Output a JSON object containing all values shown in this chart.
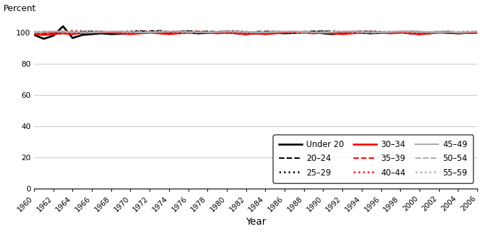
{
  "years": [
    1960,
    1961,
    1962,
    1963,
    1964,
    1965,
    1966,
    1967,
    1968,
    1969,
    1970,
    1971,
    1972,
    1973,
    1974,
    1975,
    1976,
    1977,
    1978,
    1979,
    1980,
    1981,
    1982,
    1983,
    1984,
    1985,
    1986,
    1987,
    1988,
    1989,
    1990,
    1991,
    1992,
    1993,
    1994,
    1995,
    1996,
    1997,
    1998,
    1999,
    2000,
    2001,
    2002,
    2003,
    2004,
    2005,
    2006
  ],
  "series": {
    "Under 20": [
      98.5,
      96.0,
      98.0,
      104.0,
      96.5,
      98.5,
      99.0,
      99.5,
      99.0,
      99.2,
      99.5,
      99.8,
      100.0,
      100.3,
      99.5,
      99.8,
      100.0,
      99.5,
      99.8,
      100.0,
      100.5,
      99.5,
      99.0,
      99.5,
      100.0,
      99.8,
      99.5,
      99.8,
      100.0,
      100.5,
      99.5,
      99.0,
      99.5,
      100.0,
      99.8,
      99.5,
      99.8,
      100.0,
      100.5,
      99.5,
      99.0,
      99.5,
      100.0,
      99.8,
      99.5,
      99.8,
      100.0
    ],
    "20-24": [
      99.5,
      99.0,
      100.0,
      100.5,
      100.0,
      100.5,
      100.8,
      100.5,
      100.2,
      100.0,
      100.5,
      100.8,
      101.0,
      101.2,
      100.5,
      100.8,
      101.0,
      100.5,
      100.8,
      100.5,
      101.0,
      100.5,
      100.0,
      100.5,
      100.8,
      100.5,
      100.2,
      100.0,
      100.5,
      100.8,
      101.0,
      100.5,
      100.0,
      100.5,
      100.8,
      100.5,
      100.2,
      100.0,
      100.5,
      100.8,
      100.5,
      100.0,
      100.5,
      100.8,
      99.8,
      100.0,
      100.5
    ],
    "25-29": [
      99.8,
      100.2,
      100.5,
      100.8,
      101.0,
      100.8,
      100.5,
      100.2,
      100.0,
      100.5,
      100.8,
      101.0,
      100.5,
      100.8,
      100.5,
      100.8,
      101.0,
      100.5,
      100.0,
      100.5,
      100.8,
      101.0,
      100.5,
      100.0,
      100.5,
      100.8,
      100.5,
      100.2,
      100.0,
      100.5,
      100.8,
      101.0,
      100.5,
      100.0,
      100.5,
      100.8,
      100.5,
      100.2,
      100.0,
      100.5,
      100.5,
      100.0,
      100.2,
      100.5,
      100.0,
      100.2,
      100.5
    ],
    "30-34": [
      99.0,
      98.5,
      99.0,
      99.5,
      99.0,
      99.8,
      100.0,
      100.5,
      100.0,
      99.5,
      99.0,
      99.5,
      100.0,
      99.5,
      99.0,
      99.5,
      100.0,
      100.5,
      100.0,
      99.5,
      100.0,
      99.5,
      99.0,
      99.5,
      99.0,
      99.5,
      100.0,
      100.5,
      100.0,
      99.5,
      100.0,
      99.5,
      99.0,
      99.5,
      100.0,
      100.5,
      100.0,
      99.5,
      100.0,
      99.5,
      99.0,
      99.5,
      100.0,
      100.5,
      99.5,
      99.8,
      100.0
    ],
    "35-39": [
      99.5,
      99.8,
      100.0,
      100.5,
      100.0,
      99.5,
      99.8,
      100.0,
      100.5,
      100.0,
      99.5,
      99.8,
      100.0,
      100.5,
      100.0,
      99.5,
      99.8,
      100.0,
      100.5,
      100.0,
      99.5,
      99.8,
      100.0,
      100.5,
      99.0,
      99.5,
      99.8,
      100.0,
      100.5,
      100.0,
      99.5,
      99.8,
      100.0,
      100.5,
      100.0,
      99.5,
      99.8,
      100.0,
      100.5,
      100.0,
      99.5,
      99.8,
      100.0,
      100.5,
      99.8,
      100.0,
      100.5
    ],
    "40-44": [
      99.8,
      100.0,
      100.2,
      100.5,
      100.8,
      100.5,
      100.2,
      100.0,
      99.8,
      100.0,
      100.2,
      100.5,
      100.8,
      100.5,
      100.2,
      100.0,
      99.8,
      100.0,
      100.2,
      100.5,
      100.0,
      99.8,
      100.0,
      100.2,
      100.5,
      100.8,
      100.5,
      100.2,
      100.0,
      99.8,
      100.0,
      100.2,
      100.5,
      100.8,
      100.5,
      100.2,
      100.0,
      99.8,
      100.0,
      100.2,
      100.5,
      100.0,
      100.2,
      100.5,
      100.0,
      100.2,
      100.5
    ],
    "45-49": [
      100.0,
      100.2,
      100.5,
      100.8,
      100.5,
      100.2,
      100.0,
      100.2,
      100.5,
      100.8,
      100.5,
      100.2,
      100.0,
      100.2,
      100.5,
      100.8,
      100.5,
      100.2,
      100.0,
      100.2,
      100.5,
      100.8,
      100.5,
      100.2,
      100.0,
      100.2,
      100.5,
      100.8,
      100.5,
      100.2,
      100.0,
      100.2,
      100.5,
      100.8,
      100.5,
      100.2,
      100.0,
      100.2,
      100.5,
      100.8,
      100.5,
      100.2,
      100.0,
      100.2,
      100.0,
      100.2,
      100.5
    ],
    "50-54": [
      100.2,
      100.5,
      100.8,
      100.5,
      100.2,
      100.0,
      100.2,
      100.5,
      100.8,
      100.5,
      100.2,
      100.0,
      100.2,
      100.5,
      100.8,
      100.5,
      100.2,
      100.0,
      100.2,
      100.5,
      100.8,
      100.5,
      100.2,
      100.0,
      100.2,
      100.5,
      100.8,
      100.5,
      100.2,
      100.0,
      100.2,
      100.5,
      100.8,
      100.5,
      100.2,
      100.0,
      100.2,
      100.5,
      100.8,
      100.5,
      100.2,
      100.5,
      100.8,
      100.5,
      100.2,
      100.5,
      100.8
    ],
    "55-59": [
      100.5,
      100.8,
      100.5,
      100.2,
      100.0,
      100.2,
      100.5,
      100.8,
      100.5,
      100.2,
      100.0,
      100.2,
      100.5,
      100.8,
      100.5,
      100.2,
      100.0,
      100.2,
      100.5,
      100.8,
      100.5,
      100.2,
      100.0,
      100.2,
      100.5,
      100.8,
      100.5,
      100.2,
      100.0,
      100.2,
      100.5,
      100.8,
      100.5,
      100.2,
      100.0,
      100.2,
      100.5,
      100.8,
      100.5,
      100.2,
      100.0,
      100.2,
      100.5,
      100.8,
      100.5,
      100.8,
      100.5
    ]
  },
  "styles": {
    "Under 20": {
      "color": "#000000",
      "linestyle": "-",
      "linewidth": 2.0
    },
    "20-24": {
      "color": "#000000",
      "linestyle": "--",
      "linewidth": 1.5
    },
    "25-29": {
      "color": "#000000",
      "linestyle": ":",
      "linewidth": 1.8
    },
    "30-34": {
      "color": "#ff0000",
      "linestyle": "-",
      "linewidth": 2.0
    },
    "35-39": {
      "color": "#ff0000",
      "linestyle": "--",
      "linewidth": 1.5
    },
    "40-44": {
      "color": "#ff0000",
      "linestyle": ":",
      "linewidth": 1.8
    },
    "45-49": {
      "color": "#aaaaaa",
      "linestyle": "-",
      "linewidth": 1.5
    },
    "50-54": {
      "color": "#aaaaaa",
      "linestyle": "--",
      "linewidth": 1.5
    },
    "55-59": {
      "color": "#aaaaaa",
      "linestyle": ":",
      "linewidth": 1.8
    }
  },
  "percent_label": "Percent",
  "xlabel": "Year",
  "ylim": [
    0,
    110
  ],
  "yticks": [
    0,
    20,
    40,
    60,
    80,
    100
  ],
  "xlim": [
    1960,
    2006
  ],
  "xticks": [
    1960,
    1962,
    1964,
    1966,
    1968,
    1970,
    1972,
    1974,
    1976,
    1978,
    1980,
    1982,
    1984,
    1986,
    1988,
    1990,
    1992,
    1994,
    1996,
    1998,
    2000,
    2002,
    2004,
    2006
  ],
  "legend_order": [
    "Under 20",
    "20-24",
    "25-29",
    "30-34",
    "35-39",
    "40-44",
    "45-49",
    "50-54",
    "55-59"
  ],
  "legend_labels": [
    "Under 20",
    "20–24",
    "25–29",
    "30–34",
    "35–39",
    "40–44",
    "45–49",
    "50–54",
    "55–59"
  ],
  "background_color": "#ffffff",
  "grid_color": "#cccccc"
}
